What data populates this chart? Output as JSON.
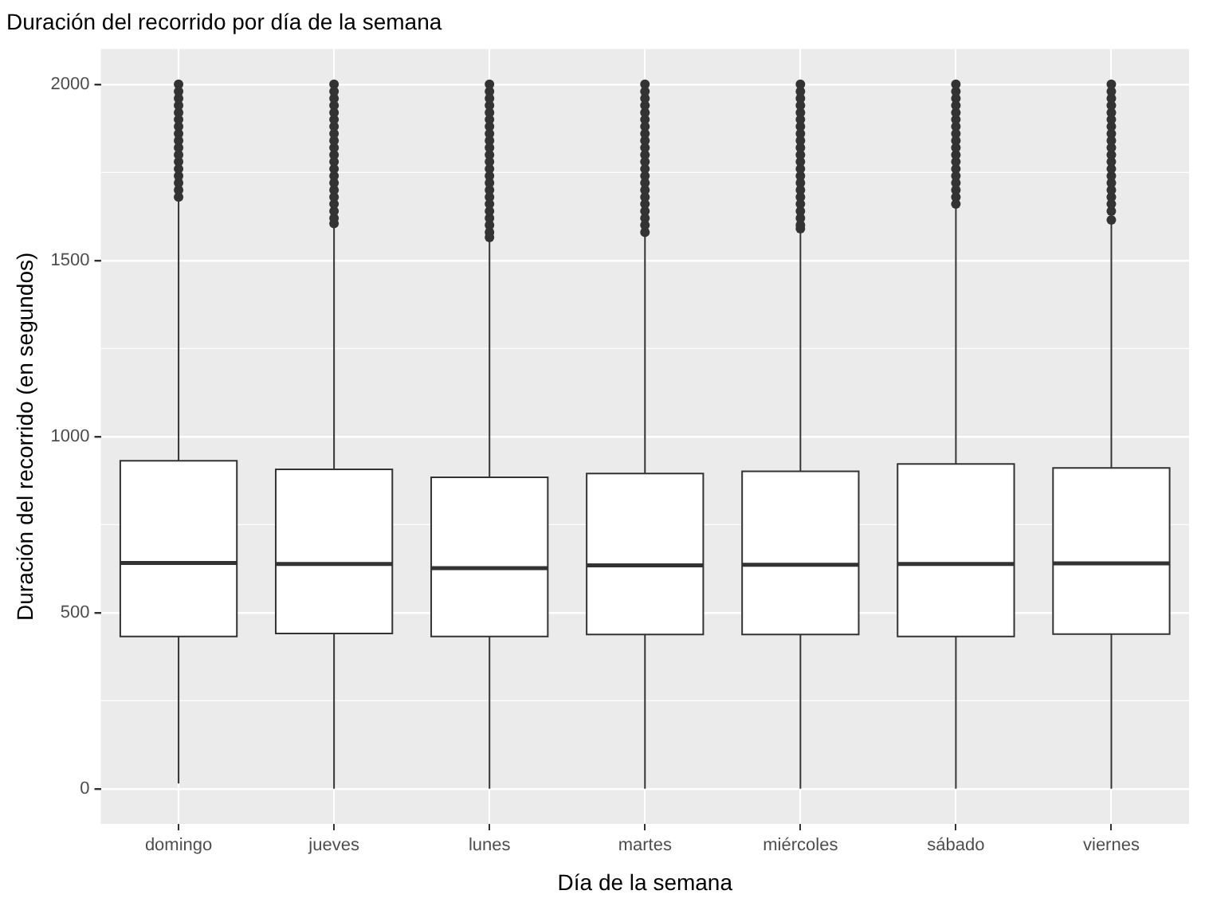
{
  "chart_data": {
    "type": "box",
    "title": "Duración del recorrido por día de la semana",
    "xlabel": "Día de la semana",
    "ylabel": "Duración del recorrido (en segundos)",
    "categories": [
      "domingo",
      "jueves",
      "lunes",
      "martes",
      "miércoles",
      "sábado",
      "viernes"
    ],
    "color": "#ffffff",
    "boxes": [
      {
        "low": 15,
        "q1": 432,
        "median": 641,
        "q3": 931,
        "high": 1675,
        "outliers": [
          1680,
          1700,
          1720,
          1740,
          1760,
          1780,
          1800,
          1820,
          1840,
          1860,
          1880,
          1900,
          1920,
          1940,
          1960,
          1980,
          2000
        ]
      },
      {
        "low": 0,
        "q1": 441,
        "median": 638,
        "q3": 907,
        "high": 1600,
        "outliers": [
          1605,
          1620,
          1640,
          1660,
          1680,
          1700,
          1720,
          1740,
          1760,
          1780,
          1800,
          1820,
          1840,
          1860,
          1880,
          1900,
          1920,
          1940,
          1960,
          1980,
          2000
        ]
      },
      {
        "low": 0,
        "q1": 432,
        "median": 626,
        "q3": 884,
        "high": 1560,
        "outliers": [
          1565,
          1580,
          1600,
          1620,
          1640,
          1660,
          1680,
          1700,
          1720,
          1740,
          1760,
          1780,
          1800,
          1820,
          1840,
          1860,
          1880,
          1900,
          1920,
          1940,
          1960,
          1980,
          2000
        ]
      },
      {
        "low": 0,
        "q1": 438,
        "median": 634,
        "q3": 895,
        "high": 1575,
        "outliers": [
          1580,
          1600,
          1620,
          1640,
          1660,
          1680,
          1700,
          1720,
          1740,
          1760,
          1780,
          1800,
          1820,
          1840,
          1860,
          1880,
          1900,
          1920,
          1940,
          1960,
          1980,
          2000
        ]
      },
      {
        "low": 0,
        "q1": 438,
        "median": 636,
        "q3": 901,
        "high": 1585,
        "outliers": [
          1590,
          1600,
          1620,
          1640,
          1660,
          1680,
          1700,
          1720,
          1740,
          1760,
          1780,
          1800,
          1820,
          1840,
          1860,
          1880,
          1900,
          1920,
          1940,
          1960,
          1980,
          2000
        ]
      },
      {
        "low": 0,
        "q1": 432,
        "median": 638,
        "q3": 922,
        "high": 1655,
        "outliers": [
          1660,
          1680,
          1700,
          1720,
          1740,
          1760,
          1780,
          1800,
          1820,
          1840,
          1860,
          1880,
          1900,
          1920,
          1940,
          1960,
          1980,
          2000
        ]
      },
      {
        "low": 0,
        "q1": 439,
        "median": 640,
        "q3": 911,
        "high": 1610,
        "outliers": [
          1615,
          1640,
          1660,
          1680,
          1700,
          1720,
          1740,
          1760,
          1780,
          1800,
          1820,
          1840,
          1860,
          1880,
          1900,
          1920,
          1940,
          1960,
          1980,
          2000
        ]
      }
    ],
    "ylim": [
      -100,
      2100
    ],
    "yticks": [
      0,
      500,
      1000,
      1500,
      2000
    ],
    "grid": true
  }
}
